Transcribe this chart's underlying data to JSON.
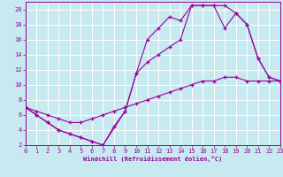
{
  "xlabel": "Windchill (Refroidissement éolien,°C)",
  "xlim": [
    0,
    23
  ],
  "ylim": [
    2,
    21
  ],
  "xticks": [
    0,
    1,
    2,
    3,
    4,
    5,
    6,
    7,
    8,
    9,
    10,
    11,
    12,
    13,
    14,
    15,
    16,
    17,
    18,
    19,
    20,
    21,
    22,
    23
  ],
  "yticks": [
    2,
    4,
    6,
    8,
    10,
    12,
    14,
    16,
    18,
    20
  ],
  "bg_color": "#c6eaf0",
  "line_color": "#990099",
  "grid_color": "#ffffff",
  "line1_x": [
    0,
    1,
    2,
    3,
    4,
    5,
    6,
    7,
    9,
    10,
    11,
    12,
    13,
    14,
    15,
    16,
    17,
    18,
    19,
    20,
    21,
    22,
    23
  ],
  "line1_y": [
    7,
    6,
    5,
    4,
    3.5,
    3,
    2.5,
    2,
    6.5,
    11.5,
    16,
    17.5,
    19,
    18.5,
    20.5,
    20.5,
    20.5,
    20.5,
    19.5,
    18,
    13.5,
    11,
    10.5
  ],
  "line2_x": [
    0,
    1,
    2,
    3,
    4,
    5,
    6,
    7,
    8,
    9,
    10,
    11,
    12,
    13,
    14,
    15,
    16,
    17,
    18,
    19,
    20,
    21,
    22,
    23
  ],
  "line2_y": [
    7,
    6.5,
    6,
    5.5,
    5,
    5,
    5.5,
    6,
    6.5,
    7,
    7.5,
    8,
    8.5,
    9,
    9.5,
    10,
    10.5,
    10.5,
    11,
    11,
    10.5,
    10.5,
    10.5,
    10.5
  ],
  "line3_x": [
    0,
    1,
    2,
    3,
    4,
    5,
    6,
    7,
    8,
    9,
    10,
    11,
    12,
    13,
    14,
    15,
    16,
    17,
    18,
    19,
    20,
    21,
    22,
    23
  ],
  "line3_y": [
    7,
    6,
    5,
    4,
    3.5,
    3,
    2.5,
    2,
    4.5,
    6.5,
    11.5,
    13,
    14,
    15,
    16,
    20.5,
    20.5,
    20.5,
    17.5,
    19.5,
    18,
    13.5,
    11,
    10.5
  ]
}
